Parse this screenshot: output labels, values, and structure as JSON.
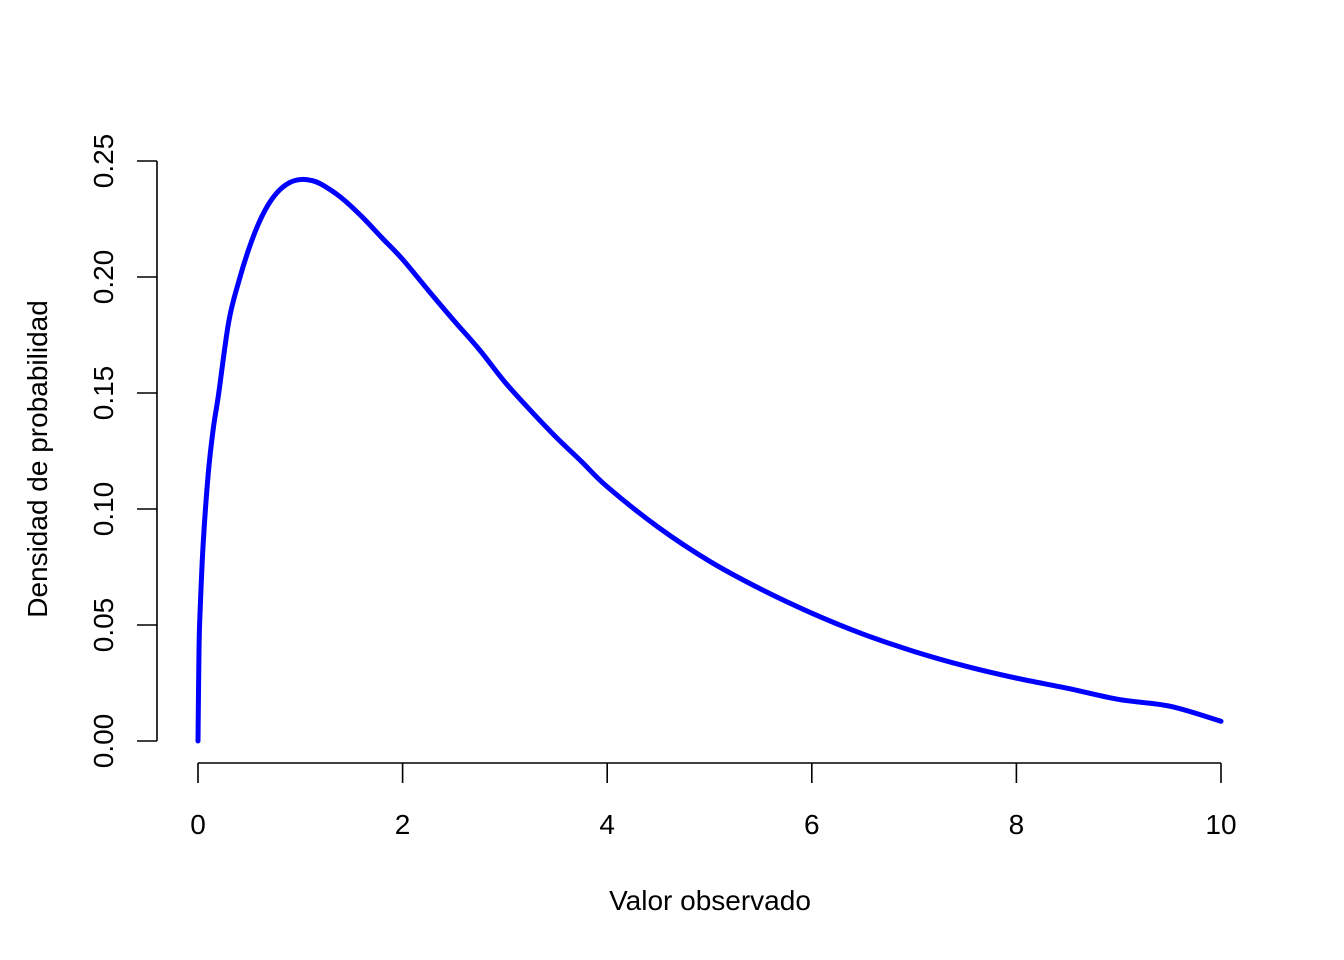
{
  "chart_data": {
    "type": "line",
    "title": "",
    "xlabel": "Valor observado",
    "ylabel": "Densidad de probabilidad",
    "xlim": [
      0,
      10
    ],
    "ylim": [
      0,
      0.25
    ],
    "x_ticks": [
      0,
      2,
      4,
      6,
      8,
      10
    ],
    "x_tick_labels": [
      "0",
      "2",
      "4",
      "6",
      "8",
      "10"
    ],
    "y_ticks": [
      0,
      0.05,
      0.1,
      0.15,
      0.2,
      0.25
    ],
    "y_tick_labels": [
      "0.00",
      "0.05",
      "0.10",
      "0.15",
      "0.20",
      "0.25"
    ],
    "grid": false,
    "legend": "none",
    "series": [
      {
        "color": "#0000ff",
        "x": [
          0,
          0.01,
          0.02,
          0.05,
          0.1,
          0.15,
          0.2,
          0.3,
          0.4,
          0.5,
          0.6,
          0.7,
          0.8,
          0.9,
          1.0,
          1.1,
          1.2,
          1.4,
          1.6,
          1.8,
          2.0,
          2.25,
          2.5,
          2.75,
          3.0,
          3.25,
          3.5,
          3.75,
          4.0,
          4.5,
          5.0,
          5.5,
          6.0,
          6.5,
          7.0,
          7.5,
          8.0,
          8.5,
          9.0,
          9.5,
          10.0
        ],
        "y": [
          0,
          0.0397,
          0.0553,
          0.0846,
          0.1152,
          0.1349,
          0.1491,
          0.1806,
          0.1983,
          0.2125,
          0.2238,
          0.2321,
          0.2376,
          0.2408,
          0.242,
          0.2417,
          0.2401,
          0.2342,
          0.2261,
          0.2168,
          0.2076,
          0.1943,
          0.1813,
          0.1687,
          0.1547,
          0.1425,
          0.131,
          0.1204,
          0.1096,
          0.0921,
          0.0775,
          0.0655,
          0.0551,
          0.0461,
          0.0386,
          0.0323,
          0.0271,
          0.0227,
          0.0179,
          0.015,
          0.0085
        ]
      }
    ]
  }
}
